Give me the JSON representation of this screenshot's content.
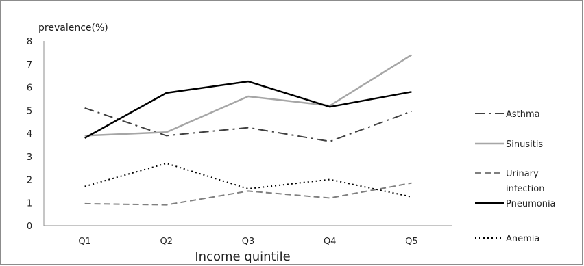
{
  "chart_data": {
    "type": "line",
    "title": "",
    "ylabel": "prevalence(%)",
    "xlabel": "Income quintile",
    "categories": [
      "Q1",
      "Q2",
      "Q3",
      "Q4",
      "Q5"
    ],
    "ylim": [
      0,
      8
    ],
    "yticks": [
      0,
      1,
      2,
      3,
      4,
      5,
      6,
      7,
      8
    ],
    "grid": false,
    "legend_position": "right",
    "series": [
      {
        "name": "Asthma",
        "values": [
          5.1,
          3.9,
          4.25,
          3.65,
          4.95
        ],
        "color": "#404040",
        "dash": "dash-dot"
      },
      {
        "name": "Sinusitis",
        "values": [
          3.9,
          4.05,
          5.6,
          5.2,
          7.4
        ],
        "color": "#a6a6a6",
        "dash": "solid"
      },
      {
        "name": "Urinary infection",
        "values": [
          0.95,
          0.9,
          1.5,
          1.2,
          1.85
        ],
        "color": "#7f7f7f",
        "dash": "dash"
      },
      {
        "name": "Pneumonia",
        "values": [
          3.8,
          5.75,
          6.25,
          5.15,
          5.8
        ],
        "color": "#000000",
        "dash": "solid"
      },
      {
        "name": "Anemia",
        "values": [
          1.7,
          2.7,
          1.6,
          2.0,
          1.25
        ],
        "color": "#000000",
        "dash": "dot"
      }
    ]
  }
}
